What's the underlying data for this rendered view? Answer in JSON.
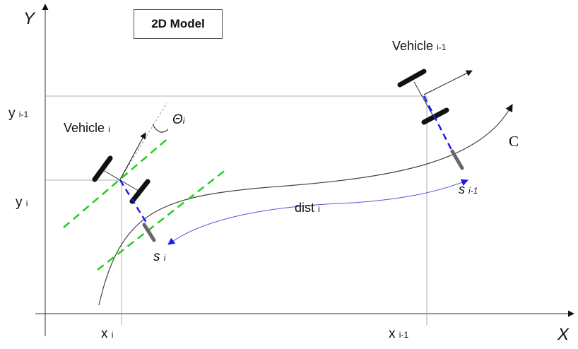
{
  "title": "2D Model",
  "axes": {
    "x_label": "X",
    "y_label": "Y"
  },
  "curve_label": "C",
  "vehicle_i": {
    "name": "Vehicle",
    "index": "i"
  },
  "vehicle_i_minus_1": {
    "name": "Vehicle",
    "index": "i-1"
  },
  "theta": {
    "symbol": "Θ",
    "index": "i"
  },
  "coords": {
    "x_i": {
      "base": "x",
      "index": "i"
    },
    "y_i": {
      "base": "y",
      "index": "i"
    },
    "x_i1": {
      "base": "x",
      "index": "i-1"
    },
    "y_i1": {
      "base": "y",
      "index": "i-1"
    }
  },
  "s_i": {
    "base": "s",
    "index": "i"
  },
  "s_i1": {
    "base": "s",
    "index": "i-1"
  },
  "dist": {
    "base": "dist",
    "index": "i"
  },
  "colors": {
    "green_dashed": "#22cc22",
    "blue_dashed": "#1a1aee",
    "arc_arrow": "#5555dd",
    "ink": "#111111"
  }
}
